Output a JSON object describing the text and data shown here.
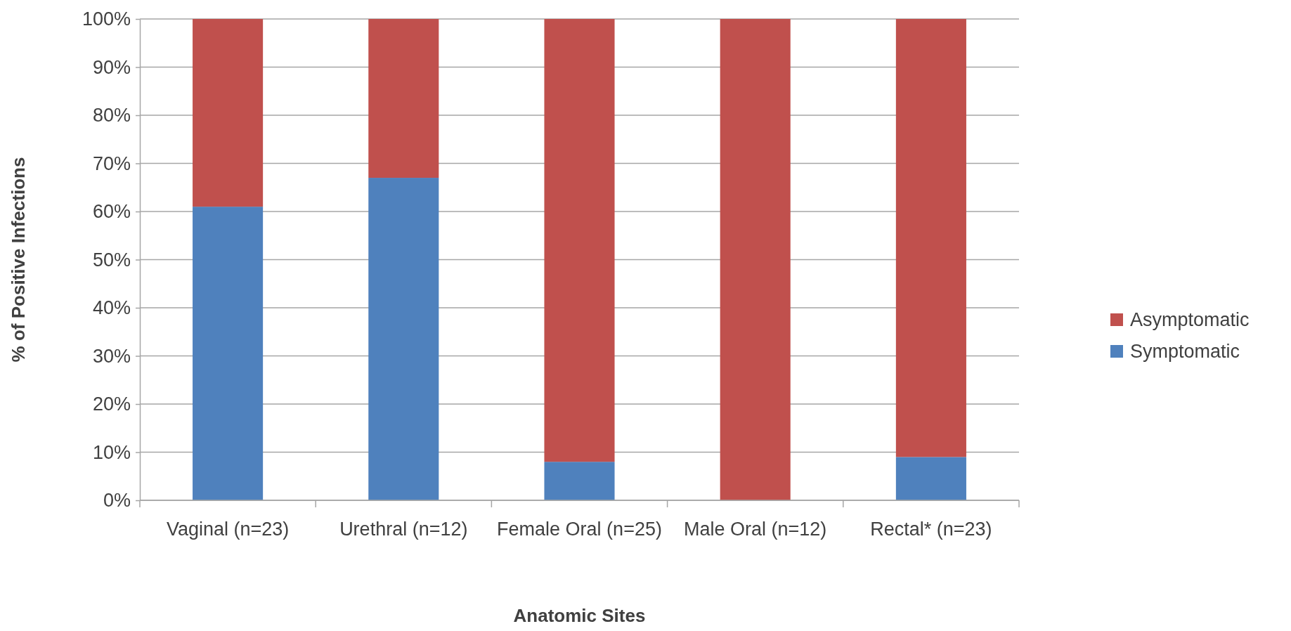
{
  "chart_data": {
    "type": "bar",
    "stacked": true,
    "xlabel": "Anatomic Sites",
    "ylabel": "% of Positive Infections",
    "categories": [
      "Vaginal (n=23)",
      "Urethral (n=12)",
      "Female Oral (n=25)",
      "Male Oral (n=12)",
      "Rectal* (n=23)"
    ],
    "series": [
      {
        "name": "Symptomatic",
        "color": "#4f81bd",
        "values": [
          61,
          67,
          8,
          0,
          9
        ]
      },
      {
        "name": "Asymptomatic",
        "color": "#c0504d",
        "values": [
          39,
          33,
          92,
          100,
          91
        ]
      }
    ],
    "ylim": [
      0,
      100
    ],
    "yticks": [
      {
        "value": 0,
        "label": "0%"
      },
      {
        "value": 10,
        "label": "10%"
      },
      {
        "value": 20,
        "label": "20%"
      },
      {
        "value": 30,
        "label": "30%"
      },
      {
        "value": 40,
        "label": "40%"
      },
      {
        "value": 50,
        "label": "50%"
      },
      {
        "value": 60,
        "label": "60%"
      },
      {
        "value": 70,
        "label": "70%"
      },
      {
        "value": 80,
        "label": "80%"
      },
      {
        "value": 90,
        "label": "90%"
      },
      {
        "value": 100,
        "label": "100%"
      }
    ],
    "grid": "y",
    "legend": "right"
  }
}
